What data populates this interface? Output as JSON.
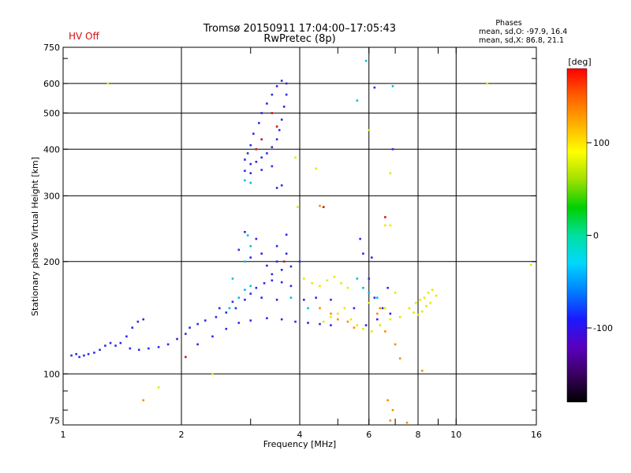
{
  "header": {
    "title_line1": "Tromsø 20150911 17:04:00–17:05:43",
    "title_line2": "RwPretec (8p)",
    "hv_status": "HV Off",
    "phases_title": "Phases",
    "phases_o": "mean, sd,O: -97.9, 16.4",
    "phases_x": "mean, sd,X:  86.8, 21.1",
    "status_color": "#d01010"
  },
  "chart_data": {
    "type": "scatter",
    "title": "Tromsø 20150911 17:04:00–17:05:43",
    "xlabel": "Frequency [MHz]",
    "ylabel": "Stationary phase Virtual Height [km]",
    "x_scale": "log",
    "y_scale": "log",
    "xlim": [
      1,
      16
    ],
    "ylim": [
      73,
      750
    ],
    "x_ticks": [
      1,
      2,
      4,
      6,
      8,
      10,
      16
    ],
    "y_ticks": [
      75,
      100,
      200,
      300,
      400,
      500,
      600,
      750
    ],
    "grid": true,
    "colorbar": {
      "label": "[deg]",
      "range": [
        -180,
        180
      ],
      "ticks": [
        100,
        0,
        -100
      ],
      "colors": [
        "#000000",
        "#3a0060",
        "#5a00c0",
        "#1a1aff",
        "#0080ff",
        "#00d8ff",
        "#00e0a0",
        "#00d000",
        "#a0e000",
        "#ffff00",
        "#ffb000",
        "#ff6000",
        "#ff0000"
      ]
    },
    "series": [
      {
        "points": [
          [
            1.05,
            112
          ],
          [
            1.08,
            113
          ],
          [
            1.1,
            111
          ],
          [
            1.13,
            112
          ],
          [
            1.16,
            113
          ],
          [
            1.2,
            114
          ],
          [
            1.24,
            116
          ],
          [
            1.28,
            119
          ],
          [
            1.32,
            121
          ],
          [
            1.36,
            119
          ],
          [
            1.4,
            121
          ],
          [
            1.45,
            126
          ],
          [
            1.5,
            133
          ],
          [
            1.55,
            138
          ],
          [
            1.6,
            140
          ],
          [
            1.48,
            117
          ],
          [
            1.56,
            116
          ],
          [
            1.65,
            117
          ],
          [
            1.75,
            118
          ],
          [
            1.85,
            120
          ],
          [
            1.95,
            124
          ],
          [
            2.05,
            128
          ],
          [
            2.1,
            133
          ],
          [
            2.2,
            136
          ],
          [
            2.3,
            139
          ],
          [
            2.45,
            142
          ],
          [
            2.6,
            146
          ],
          [
            2.75,
            150
          ],
          [
            2.9,
            158
          ],
          [
            3.0,
            164
          ],
          [
            3.1,
            170
          ],
          [
            3.25,
            175
          ],
          [
            3.4,
            178
          ],
          [
            3.6,
            176
          ],
          [
            3.8,
            172
          ],
          [
            2.2,
            120
          ],
          [
            2.4,
            126
          ],
          [
            2.6,
            132
          ],
          [
            2.8,
            137
          ],
          [
            3.0,
            139
          ],
          [
            3.3,
            141
          ],
          [
            3.6,
            140
          ],
          [
            3.9,
            138
          ],
          [
            4.2,
            137
          ],
          [
            4.5,
            136
          ],
          [
            4.8,
            135
          ],
          [
            2.5,
            150
          ],
          [
            2.7,
            156
          ],
          [
            3.2,
            160
          ],
          [
            3.5,
            158
          ],
          [
            4.1,
            158
          ],
          [
            4.4,
            160
          ],
          [
            4.8,
            158
          ],
          [
            3.4,
            185
          ],
          [
            3.6,
            190
          ],
          [
            3.8,
            194
          ],
          [
            4.0,
            200
          ],
          [
            3.2,
            210
          ],
          [
            3.5,
            220
          ],
          [
            3.7,
            236
          ],
          [
            2.9,
            240
          ],
          [
            3.1,
            230
          ],
          [
            2.8,
            215
          ],
          [
            3.0,
            205
          ],
          [
            3.3,
            195
          ],
          [
            3.5,
            200
          ],
          [
            3.7,
            210
          ],
          [
            5.8,
            210
          ],
          [
            6.0,
            180
          ],
          [
            6.2,
            160
          ],
          [
            6.5,
            150
          ],
          [
            6.8,
            145
          ],
          [
            5.7,
            230
          ],
          [
            6.1,
            205
          ],
          [
            5.5,
            150
          ],
          [
            5.9,
            135
          ],
          [
            6.3,
            140
          ],
          [
            6.7,
            170
          ],
          [
            2.9,
            375
          ],
          [
            3.0,
            365
          ],
          [
            3.1,
            370
          ],
          [
            3.2,
            380
          ],
          [
            3.3,
            390
          ],
          [
            3.4,
            405
          ],
          [
            3.5,
            425
          ],
          [
            3.55,
            450
          ],
          [
            3.6,
            480
          ],
          [
            3.65,
            520
          ],
          [
            3.7,
            560
          ],
          [
            3.7,
            600
          ],
          [
            3.6,
            610
          ],
          [
            3.5,
            590
          ],
          [
            3.4,
            560
          ],
          [
            3.3,
            530
          ],
          [
            3.2,
            500
          ],
          [
            3.15,
            470
          ],
          [
            3.05,
            440
          ],
          [
            3.0,
            410
          ],
          [
            2.95,
            390
          ],
          [
            2.9,
            350
          ],
          [
            3.0,
            345
          ],
          [
            3.2,
            352
          ],
          [
            3.4,
            360
          ],
          [
            3.5,
            315
          ],
          [
            3.6,
            320
          ],
          [
            6.9,
            400
          ],
          [
            6.2,
            585
          ]
        ]
      },
      {
        "points": [
          [
            4.1,
            180
          ],
          [
            4.3,
            175
          ],
          [
            4.5,
            172
          ],
          [
            4.7,
            178
          ],
          [
            4.9,
            182
          ],
          [
            5.1,
            175
          ],
          [
            5.3,
            170
          ],
          [
            5.2,
            150
          ],
          [
            5.0,
            145
          ],
          [
            4.8,
            142
          ],
          [
            4.6,
            138
          ],
          [
            5.4,
            140
          ],
          [
            5.6,
            135
          ],
          [
            5.8,
            132
          ],
          [
            6.1,
            130
          ],
          [
            6.4,
            135
          ],
          [
            6.8,
            140
          ],
          [
            7.2,
            142
          ],
          [
            7.6,
            150
          ],
          [
            7.9,
            155
          ],
          [
            8.1,
            158
          ],
          [
            8.3,
            160
          ],
          [
            8.5,
            165
          ],
          [
            8.7,
            168
          ],
          [
            8.4,
            152
          ],
          [
            8.2,
            147
          ],
          [
            8.0,
            144
          ],
          [
            7.8,
            146
          ],
          [
            8.6,
            155
          ],
          [
            8.9,
            162
          ],
          [
            7.0,
            165
          ],
          [
            6.6,
            150
          ],
          [
            6.0,
            155
          ],
          [
            4.4,
            355
          ],
          [
            3.9,
            380
          ],
          [
            6.8,
            345
          ],
          [
            6.8,
            250
          ],
          [
            6.0,
            450
          ],
          [
            2.4,
            100
          ],
          [
            1.75,
            92
          ],
          [
            1.3,
            600
          ],
          [
            12.0,
            600
          ],
          [
            15.5,
            196
          ],
          [
            6.6,
            250
          ],
          [
            3.95,
            280
          ]
        ]
      },
      {
        "points": [
          [
            3.0,
            172
          ],
          [
            2.9,
            168
          ],
          [
            2.8,
            160
          ],
          [
            2.65,
            150
          ],
          [
            2.7,
            180
          ],
          [
            2.9,
            200
          ],
          [
            3.0,
            220
          ],
          [
            2.95,
            235
          ],
          [
            3.8,
            160
          ],
          [
            4.2,
            150
          ],
          [
            5.6,
            180
          ],
          [
            5.8,
            170
          ],
          [
            6.0,
            165
          ],
          [
            6.3,
            160
          ],
          [
            2.9,
            330
          ],
          [
            3.0,
            325
          ],
          [
            6.9,
            590
          ],
          [
            5.9,
            690
          ],
          [
            5.6,
            540
          ]
        ]
      },
      {
        "points": [
          [
            4.5,
            150
          ],
          [
            4.8,
            145
          ],
          [
            5.0,
            140
          ],
          [
            5.3,
            138
          ],
          [
            6.3,
            145
          ],
          [
            6.6,
            130
          ],
          [
            7.0,
            120
          ],
          [
            7.2,
            110
          ],
          [
            6.8,
            75
          ],
          [
            7.5,
            74
          ],
          [
            6.7,
            85
          ],
          [
            6.9,
            80
          ],
          [
            4.5,
            282
          ],
          [
            5.5,
            133
          ],
          [
            6.4,
            150
          ],
          [
            1.6,
            85
          ],
          [
            8.2,
            102
          ]
        ]
      },
      {
        "points": [
          [
            2.05,
            111
          ],
          [
            3.65,
            200
          ],
          [
            4.6,
            280
          ],
          [
            6.6,
            263
          ],
          [
            3.2,
            425
          ],
          [
            3.5,
            460
          ],
          [
            3.1,
            400
          ],
          [
            3.4,
            500
          ]
        ]
      }
    ]
  }
}
